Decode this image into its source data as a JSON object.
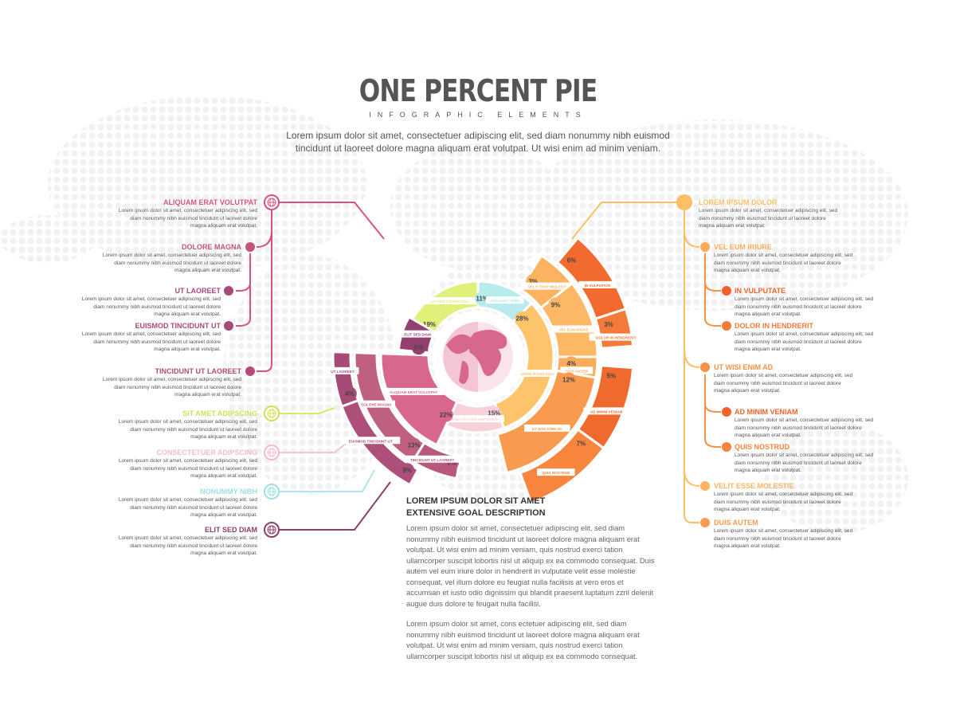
{
  "header": {
    "title": "ONE PERCENT PIE",
    "subtitle": "INFOGRAPHIC ELEMENTS",
    "intro": "Lorem ipsum dolor sit amet, consectetuer adipiscing elit, sed diam nonummy nibh euismod tincidunt ut laoreet dolore magna aliquam erat volutpat. Ut wisi enim ad minim veniam."
  },
  "item_text": "Lorem ipsum dolor sit amet, consectetuer adipiscing elit, sed diam nonummy nibh euismod tincidunt ut laoreet dolore magna aliquam erat volutpat.",
  "left_items": [
    {
      "title": "ALIQUAM ERAT VOLUTPAT",
      "color": "#d9527f",
      "icon": "globe-icon"
    },
    {
      "title": "DOLORE MAGNA",
      "color": "#c25579"
    },
    {
      "title": "UT LAOREET",
      "color": "#a84a78"
    },
    {
      "title": "EUISMOD TINCIDUNT UT",
      "color": "#a84a78"
    },
    {
      "title": "TINCIDUNT UT LAOREET",
      "color": "#b34c78"
    },
    {
      "title": "SIT AMET ADIPSCING",
      "color": "#cfe05a",
      "icon": "globe-icon"
    },
    {
      "title": "CONSECTETUER ADIPSCING",
      "color": "#f2bccb",
      "icon": "globe-icon"
    },
    {
      "title": "NONUMMY NIBH",
      "color": "#9fe0e3",
      "icon": "globe-icon"
    },
    {
      "title": "ELIT SED DIAM",
      "color": "#8e3e6b",
      "icon": "globe-icon"
    }
  ],
  "right_items": [
    {
      "title": "LOREM IPSUM DOLOR",
      "color": "#fdbf65"
    },
    {
      "title": "VEL EUM IRIURE",
      "color": "#fca95a"
    },
    {
      "title": "IN VULPUTATE",
      "color": "#f0622a"
    },
    {
      "title": "DOLOR IN HENDRERIT",
      "color": "#f47a3a"
    },
    {
      "title": "UT WISI ENIM AD",
      "color": "#f79148"
    },
    {
      "title": "AD MINIM VENIAM",
      "color": "#f0622a"
    },
    {
      "title": "QUIS NOSTRUD",
      "color": "#f7853e"
    },
    {
      "title": "VELIT ESSE MOLESTIE",
      "color": "#fbb360"
    },
    {
      "title": "DUIS AUTEM",
      "color": "#f99a4f"
    }
  ],
  "main": {
    "heading1": "LOREM IPSUM DOLOR SIT AMET",
    "heading2": "EXTENSIVE GOAL DESCRIPTION",
    "para1": "Lorem ipsum dolor sit amet, consectetuer adipiscing elit, sed diam nonummy nibh euismod tincidunt ut laoreet dolore magna aliquam erat volutpat. Ut wisi enim ad minim veniam, quis nostrud exerci tation ullamcorper suscipit lobortis nisl ut aliquip ex ea commodo consequat. Duis autem vel eum iriure dolor in hendrerit in vulputate velit esse molestie consequat, vel illum dolore eu feugiat nulla facilisis at vero eros et accumsan et iusto odio dignissim qui blandit praesent luptatum zzril delenit augue duis dolore te feugait nulla facilisi.",
    "para2": "Lorem ipsum dolor sit amet, cons ectetuer adipiscing elit, sed diam nonummy nibh euismod tincidunt ut laoreet dolore magna aliquam erat volutpat. Ut wisi enim ad minim veniam, quis nostrud exerci tation ullamcorper suscipit lobortis nisl ut aliquip ex ea commodo consequat."
  },
  "chart_data": {
    "type": "pie",
    "segments": [
      {
        "label": "SIT AMET ADIPSCING",
        "percent": "19%",
        "color": "#e0f07a"
      },
      {
        "label": "NONUMMY NIBH",
        "percent": "11%",
        "color": "#b8ecec"
      },
      {
        "label": "LOREM IPSUM DOLOR",
        "percent": "28%",
        "color": "#fdc46c"
      },
      {
        "label": "CONSECTETUER ADIPSCING",
        "percent": "15%",
        "color": "#f7d0da"
      },
      {
        "label": "ALIQUAM ERAT VOLUTPAT",
        "percent": "22%",
        "color": "#d8678e"
      },
      {
        "label": "ELIT SED DIAM",
        "percent": "5%",
        "color": "#93406e"
      },
      {
        "label": "VELIT ESSE MOLESTIE",
        "percent": "3%",
        "color": "#fbb360"
      },
      {
        "label": "VEL EUM IRIURE",
        "percent": "9%",
        "color": "#fdb865"
      },
      {
        "label": "DUIS AUTEM",
        "percent": "4%",
        "color": "#fbab5a"
      },
      {
        "label": "UT WISI ENIM AD",
        "percent": "12%",
        "color": "#f99a4f"
      },
      {
        "label": "IN VULPUTATE",
        "percent": "6%",
        "color": "#f26a2e"
      },
      {
        "label": "DOLOR IN HENDRERIT",
        "percent": "3%",
        "color": "#f47a3a"
      },
      {
        "label": "AD MINIM VENIAM",
        "percent": "5%",
        "color": "#f06a2e"
      },
      {
        "label": "QUIS NOSTRUD",
        "percent": "7%",
        "color": "#f7853e"
      },
      {
        "label": "DOLORE MAGNA",
        "percent": "13%",
        "color": "#c0607f"
      },
      {
        "label": "TINCIDUNT UT LAOREET",
        "percent": "9%",
        "color": "#b9577c"
      },
      {
        "label": "UT LAOREET",
        "percent": "4%",
        "color": "#a84a78"
      },
      {
        "label": "EUISMOD TINCIDUNT UT",
        "percent": "9%",
        "color": "#ad4f7a"
      }
    ]
  }
}
